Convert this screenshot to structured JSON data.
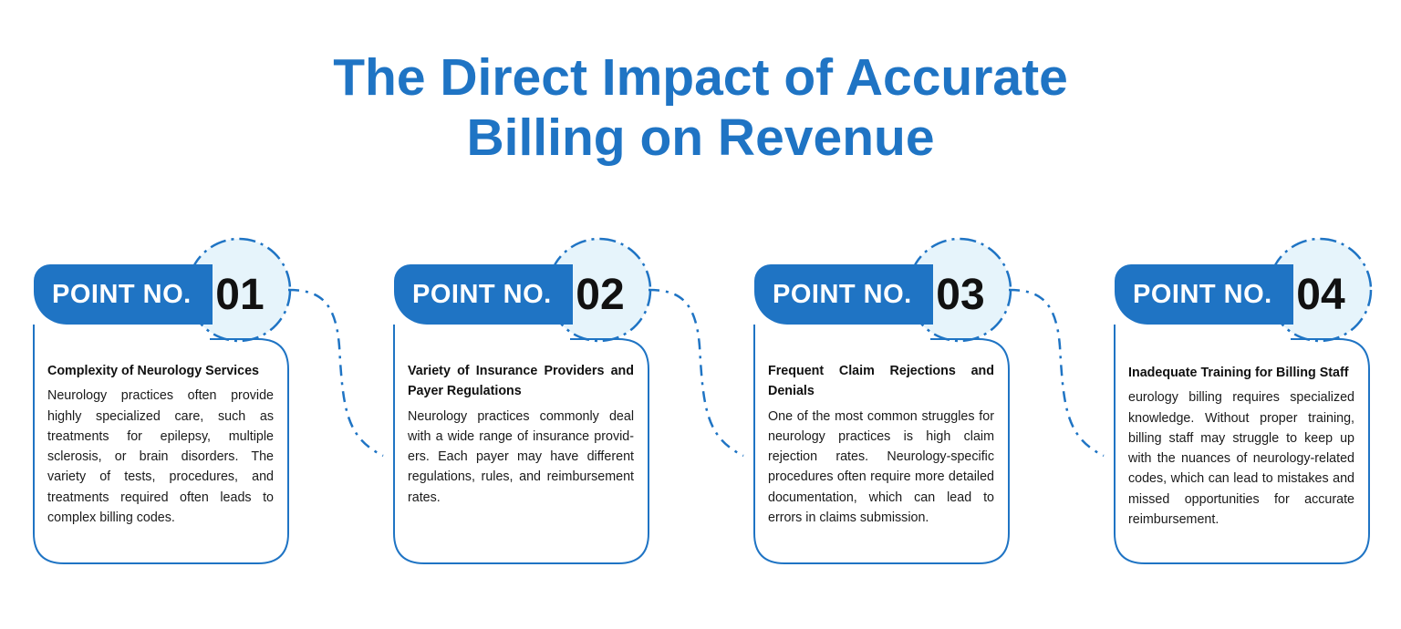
{
  "title": {
    "line1": "The Direct Impact of Accurate",
    "line2": "Billing on Revenue"
  },
  "colors": {
    "accent": "#1f74c4",
    "circle_fill": "#e6f4fb",
    "text": "#1a1a1a"
  },
  "points": [
    {
      "label": "POINT NO.",
      "number": "01",
      "heading": "Complexity of Neurology Services",
      "body": "Neurology practices often provide highly specialized care, such as treatments for epilepsy, multiple sclerosis, or brain disorders. The variety of tests, procedures, and treatments required often leads to complex billing codes."
    },
    {
      "label": "POINT NO.",
      "number": "02",
      "heading": "Variety of Insurance Providers and Payer Regulations",
      "body": "Neurology practices commonly deal with a wide range of insurance provid-ers. Each payer may have different regulations, rules, and reimbursement rates."
    },
    {
      "label": "POINT NO.",
      "number": "03",
      "heading": "Frequent Claim Rejections and Denials",
      "body": "One of the most common struggles for neurology practices is high claim rejection rates. Neurology-specific procedures often require more detailed documentation, which can lead to errors in claims submission."
    },
    {
      "label": "POINT NO.",
      "number": "04",
      "heading": "Inadequate Training for Billing Staff",
      "body": "eurology billing requires specialized knowledge. Without proper training, billing staff may struggle to keep up with the nuances of neurology-related codes, which can lead to mistakes and missed opportunities for accurate reimbursement."
    }
  ]
}
